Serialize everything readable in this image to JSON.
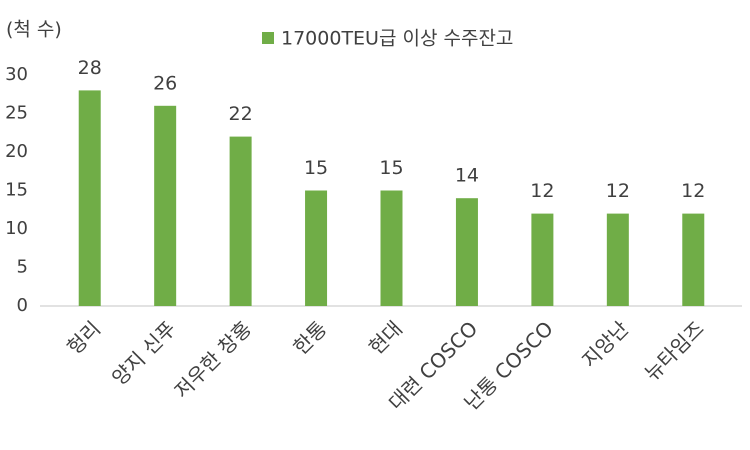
{
  "chart_data": {
    "type": "bar",
    "y_label": "(척 수)",
    "categories": [
      "헝리",
      "양지 신푸",
      "저우한 창홍",
      "한통",
      "현대",
      "대련 COSCO",
      "난통 COSCO",
      "지앙난",
      "뉴타임즈"
    ],
    "series": [
      {
        "name": "17000TEU급 이상 수주잔고",
        "color": "#70ad47",
        "values": [
          28,
          26,
          22,
          15,
          15,
          14,
          12,
          12,
          12
        ]
      }
    ],
    "ylim": [
      0,
      30
    ],
    "yticks": [
      0,
      5,
      10,
      15,
      20,
      25,
      30
    ],
    "grid": false,
    "data_labels": true
  }
}
